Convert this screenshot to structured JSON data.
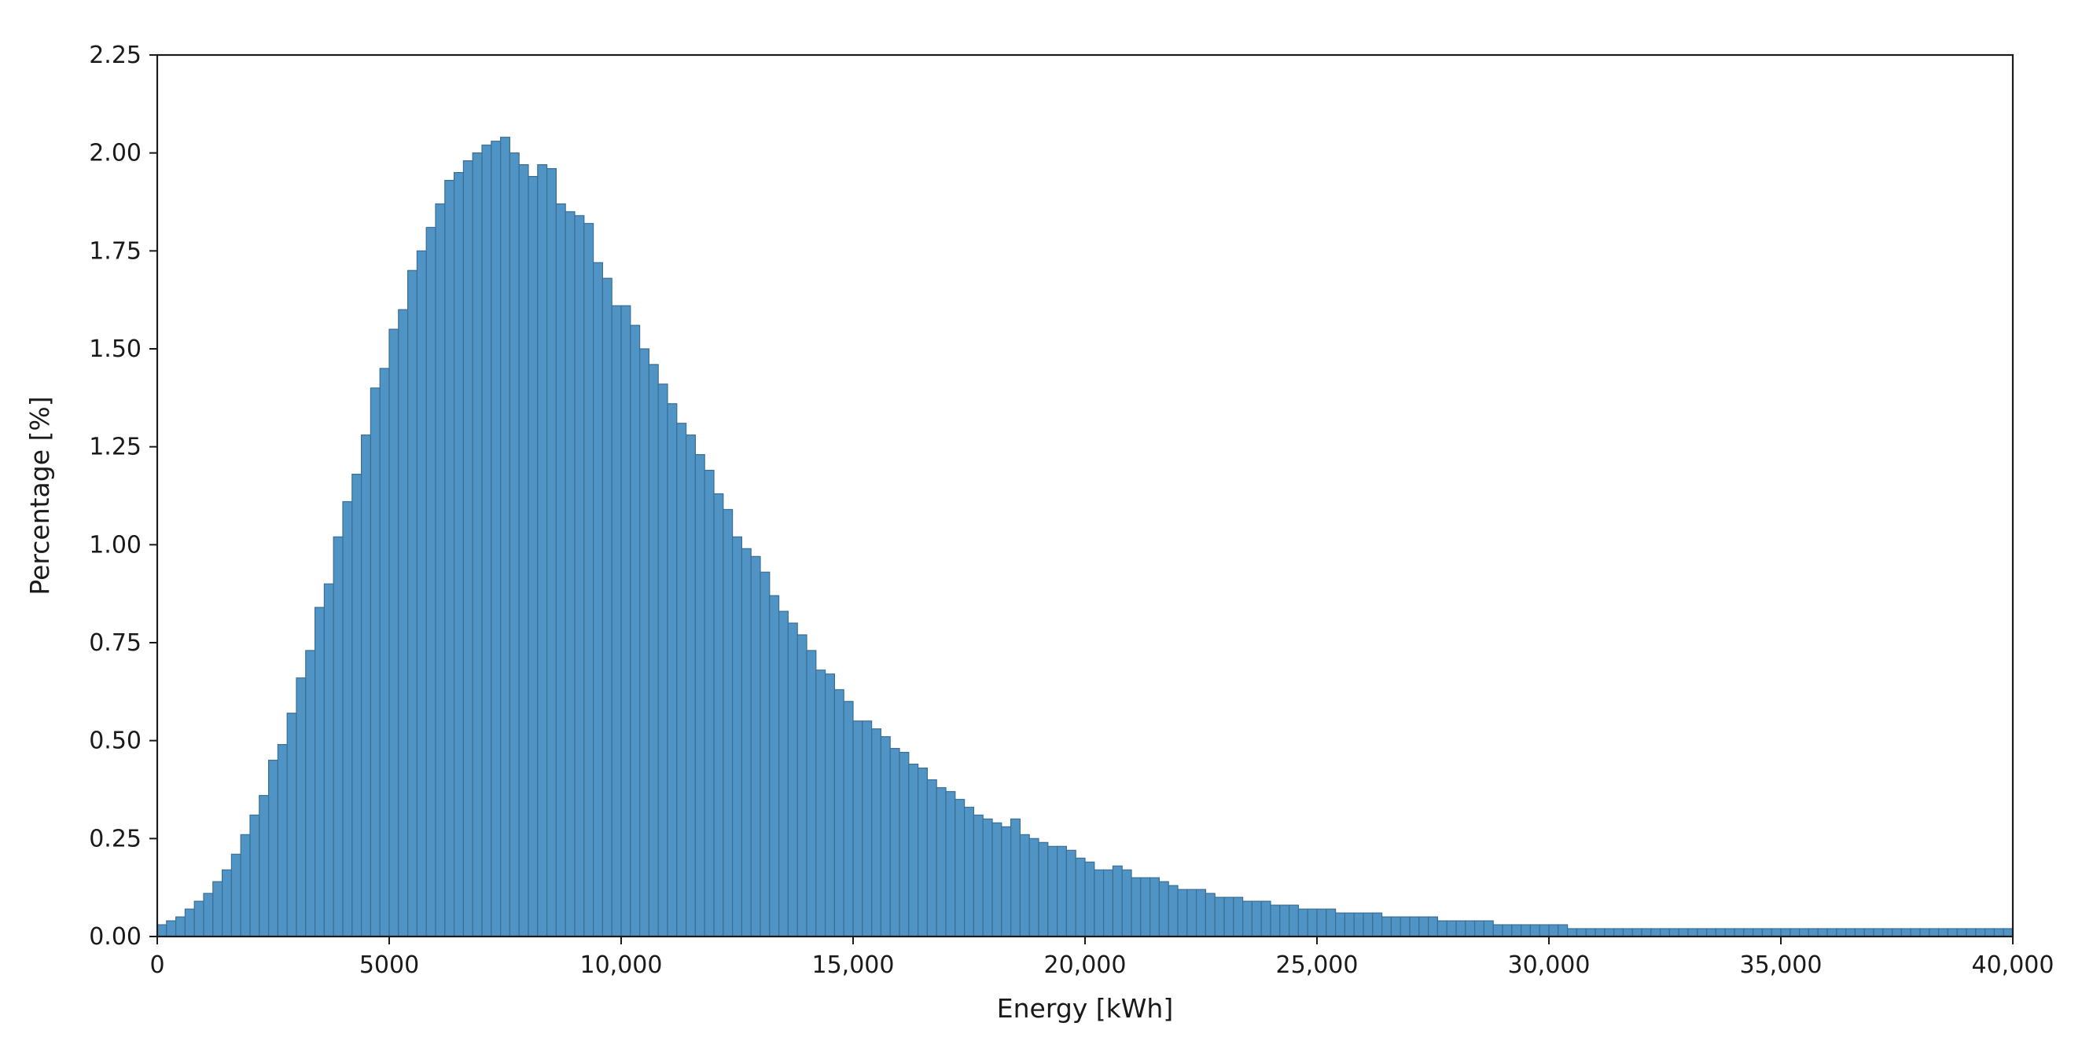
{
  "chart_data": {
    "type": "bar",
    "xlabel": "Energy [kWh]",
    "ylabel": "Percentage [%]",
    "xlim": [
      0,
      40000
    ],
    "ylim": [
      0,
      2.25
    ],
    "x_ticks": [
      0,
      5000,
      10000,
      15000,
      20000,
      25000,
      30000,
      35000,
      40000
    ],
    "x_tick_labels": [
      "0",
      "5000",
      "10,000",
      "15,000",
      "20,000",
      "25,000",
      "30,000",
      "35,000",
      "40,000"
    ],
    "y_ticks": [
      0,
      0.25,
      0.5,
      0.75,
      1.0,
      1.25,
      1.5,
      1.75,
      2.0,
      2.25
    ],
    "y_tick_labels": [
      "0.00",
      "0.25",
      "0.50",
      "0.75",
      "1.00",
      "1.25",
      "1.50",
      "1.75",
      "2.00",
      "2.25"
    ],
    "bin_width": 200,
    "bin_start": 0,
    "values": [
      0.03,
      0.04,
      0.05,
      0.07,
      0.09,
      0.11,
      0.14,
      0.17,
      0.21,
      0.26,
      0.31,
      0.36,
      0.45,
      0.49,
      0.57,
      0.66,
      0.73,
      0.84,
      0.9,
      1.02,
      1.11,
      1.18,
      1.28,
      1.4,
      1.45,
      1.55,
      1.6,
      1.7,
      1.75,
      1.81,
      1.87,
      1.93,
      1.95,
      1.98,
      2.0,
      2.02,
      2.03,
      2.04,
      2.0,
      1.97,
      1.94,
      1.97,
      1.96,
      1.87,
      1.85,
      1.84,
      1.82,
      1.72,
      1.68,
      1.61,
      1.61,
      1.56,
      1.5,
      1.46,
      1.41,
      1.36,
      1.31,
      1.28,
      1.23,
      1.19,
      1.13,
      1.09,
      1.02,
      0.99,
      0.97,
      0.93,
      0.87,
      0.83,
      0.8,
      0.77,
      0.73,
      0.68,
      0.67,
      0.63,
      0.6,
      0.55,
      0.55,
      0.53,
      0.51,
      0.48,
      0.47,
      0.44,
      0.43,
      0.4,
      0.38,
      0.37,
      0.35,
      0.33,
      0.31,
      0.3,
      0.29,
      0.28,
      0.3,
      0.26,
      0.25,
      0.24,
      0.23,
      0.23,
      0.22,
      0.2,
      0.19,
      0.17,
      0.17,
      0.18,
      0.17,
      0.15,
      0.15,
      0.15,
      0.14,
      0.13,
      0.12,
      0.12,
      0.12,
      0.11,
      0.1,
      0.1,
      0.1,
      0.09,
      0.09,
      0.09,
      0.08,
      0.08,
      0.08,
      0.07,
      0.07,
      0.07,
      0.07,
      0.06,
      0.06,
      0.06,
      0.06,
      0.06,
      0.05,
      0.05,
      0.05,
      0.05,
      0.05,
      0.05,
      0.04,
      0.04,
      0.04,
      0.04,
      0.04,
      0.04,
      0.03,
      0.03,
      0.03,
      0.03,
      0.03,
      0.03,
      0.03,
      0.03,
      0.02,
      0.02,
      0.02,
      0.02,
      0.02,
      0.02,
      0.02,
      0.02,
      0.02,
      0.02,
      0.02,
      0.02,
      0.02,
      0.02,
      0.02,
      0.02,
      0.02,
      0.02,
      0.02,
      0.02,
      0.02,
      0.02,
      0.02,
      0.02,
      0.02,
      0.02,
      0.02,
      0.02,
      0.02,
      0.02,
      0.02,
      0.02,
      0.02,
      0.02,
      0.02,
      0.02,
      0.02,
      0.02,
      0.02,
      0.02,
      0.02,
      0.02,
      0.02,
      0.02,
      0.02,
      0.02,
      0.02,
      0.02
    ],
    "bar_color": "#4f94c4",
    "bar_edge_color": "#3a6e94",
    "grid": false,
    "legend": "none"
  }
}
